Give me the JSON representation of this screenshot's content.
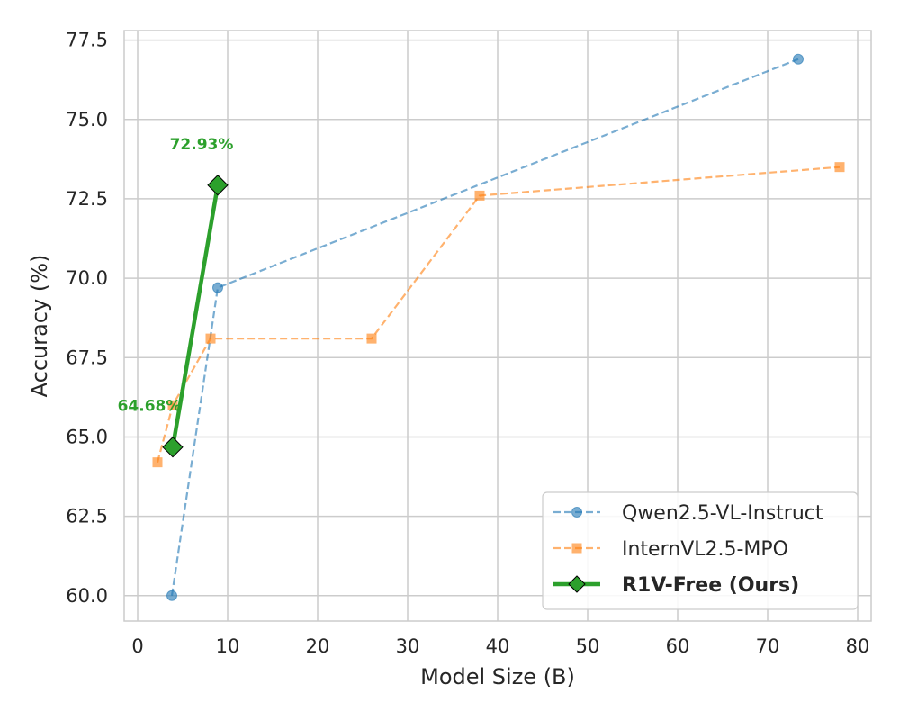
{
  "chart_data": {
    "type": "line",
    "xlabel": "Model Size (B)",
    "ylabel": "Accuracy (%)",
    "xlim": [
      -1.5,
      81.5
    ],
    "ylim": [
      59.2,
      77.8
    ],
    "xticks": [
      0,
      10,
      20,
      30,
      40,
      50,
      60,
      70,
      80
    ],
    "yticks": [
      60.0,
      62.5,
      65.0,
      67.5,
      70.0,
      72.5,
      75.0,
      77.5
    ],
    "xtick_labels": [
      "0",
      "10",
      "20",
      "30",
      "40",
      "50",
      "60",
      "70",
      "80"
    ],
    "ytick_labels": [
      "60.0",
      "62.5",
      "65.0",
      "67.5",
      "70.0",
      "72.5",
      "75.0",
      "77.5"
    ],
    "grid": true,
    "legend_position": "lower-right",
    "series": [
      {
        "name": "Qwen2.5-VL-Instruct",
        "color": "#1f77b4",
        "marker": "circle",
        "style": "dashed",
        "x": [
          3.8,
          8.9,
          73.4
        ],
        "y": [
          60.0,
          69.7,
          76.9
        ]
      },
      {
        "name": "InternVL2.5-MPO",
        "color": "#ff7f0e",
        "marker": "square",
        "style": "dashed",
        "x": [
          2.2,
          3.9,
          8.1,
          26.0,
          38.0,
          78.0
        ],
        "y": [
          64.2,
          66.0,
          68.1,
          68.1,
          72.6,
          73.5
        ]
      },
      {
        "name": "R1V-Free (Ours)",
        "color": "#2ca02c",
        "marker": "diamond",
        "style": "solid",
        "x": [
          3.9,
          8.9
        ],
        "y": [
          64.68,
          72.93
        ]
      }
    ],
    "annotations": [
      {
        "text": "72.93%",
        "x": 8.9,
        "y": 72.93
      },
      {
        "text": "64.68%",
        "x": 3.9,
        "y": 64.68
      }
    ]
  }
}
